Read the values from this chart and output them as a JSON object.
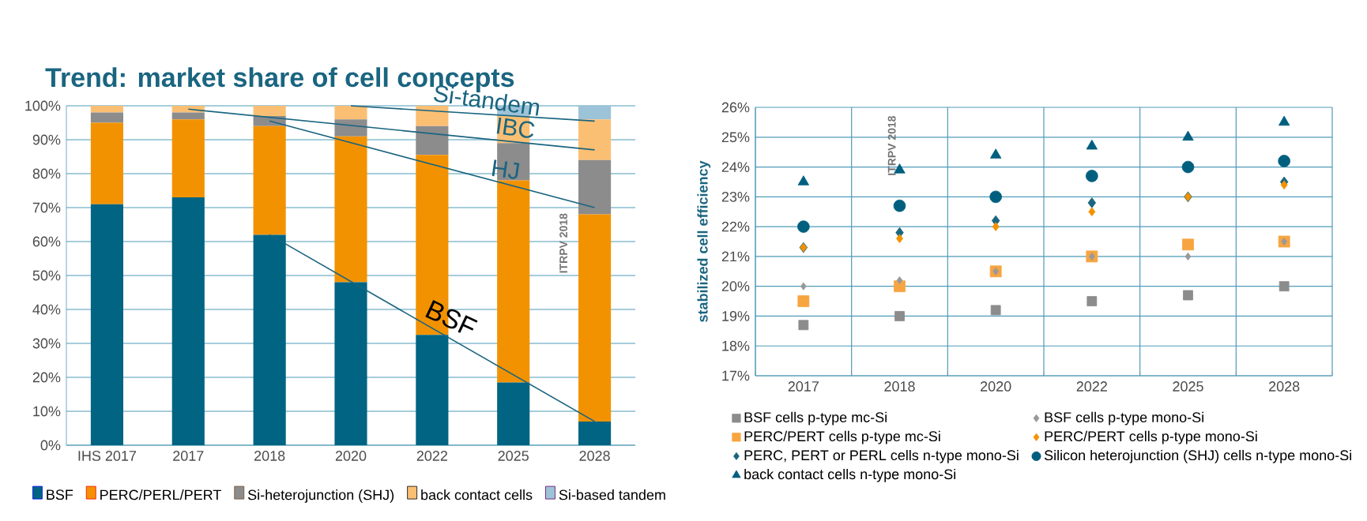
{
  "chart_data": [
    {
      "type": "bar",
      "title": "Trend: market share of cell concepts",
      "stacked": true,
      "grid": "y",
      "legend": "bottom",
      "categories": [
        "IHS 2017",
        "2017",
        "2018",
        "2020",
        "2022",
        "2025",
        "2028"
      ],
      "ylim": [
        0,
        100
      ],
      "yticks": [
        {
          "value": 0,
          "label": "0%"
        },
        {
          "value": 10,
          "label": "10%"
        },
        {
          "value": 20,
          "label": "20%"
        },
        {
          "value": 30,
          "label": "30%"
        },
        {
          "value": 40,
          "label": "40%"
        },
        {
          "value": 50,
          "label": "50%"
        },
        {
          "value": 60,
          "label": "60%"
        },
        {
          "value": 70,
          "label": "70%"
        },
        {
          "value": 80,
          "label": "80%"
        },
        {
          "value": 90,
          "label": "90%"
        },
        {
          "value": 100,
          "label": "100%"
        }
      ],
      "series": [
        {
          "name": "BSF",
          "color": "#006482",
          "values": [
            71,
            73,
            62,
            48,
            32.5,
            18.5,
            7
          ]
        },
        {
          "name": "PERC/PERL/PERT",
          "color": "#f39200",
          "values": [
            24,
            23,
            32,
            43,
            53,
            59.5,
            61
          ]
        },
        {
          "name": "Si-heterojunction (SHJ)",
          "color": "#8c8c8c",
          "values": [
            3,
            2,
            3,
            5,
            8.5,
            11,
            16
          ]
        },
        {
          "name": "back contact cells",
          "color": "#fbbf73",
          "values": [
            2,
            2,
            3,
            4,
            6,
            8,
            12
          ]
        },
        {
          "name": "Si-based tandem",
          "color": "#9dc3d9",
          "values": [
            0,
            0,
            0,
            0,
            0,
            3,
            4
          ]
        },
        {
          "type": "line",
          "color": "#1a6580",
          "values": [
            null,
            null,
            62,
            null,
            null,
            null,
            7
          ]
        },
        {
          "type": "line",
          "color": "#1a6580",
          "values": [
            null,
            null,
            95.5,
            null,
            null,
            null,
            70
          ]
        },
        {
          "type": "line",
          "color": "#1a6580",
          "values": [
            null,
            99,
            null,
            null,
            null,
            null,
            87
          ]
        },
        {
          "type": "line",
          "color": "#1a6580",
          "values": [
            null,
            null,
            null,
            100,
            null,
            null,
            95.5
          ]
        }
      ],
      "annotations": [
        "BSF",
        "HJ",
        "IBC",
        "Si-tandem",
        "ITRPV 2018"
      ]
    },
    {
      "type": "scatter",
      "ylabel": "stabilized cell efficiency",
      "grid": true,
      "legend": "bottom",
      "categories": [
        "2017",
        "2018",
        "2020",
        "2022",
        "2025",
        "2028"
      ],
      "ylim": [
        17,
        26
      ],
      "yticks": [
        {
          "value": 17,
          "label": "17%"
        },
        {
          "value": 18,
          "label": "18%"
        },
        {
          "value": 19,
          "label": "19%"
        },
        {
          "value": 20,
          "label": "20%"
        },
        {
          "value": 21,
          "label": "21%"
        },
        {
          "value": 22,
          "label": "22%"
        },
        {
          "value": 23,
          "label": "23%"
        },
        {
          "value": 24,
          "label": "24%"
        },
        {
          "value": 25,
          "label": "25%"
        },
        {
          "value": 26,
          "label": "26%"
        }
      ],
      "series": [
        {
          "name": "BSF cells p-type mc-Si",
          "color": "#8c8c8c",
          "marker": "square",
          "values": [
            18.7,
            19.0,
            19.2,
            19.5,
            19.7,
            20.0
          ]
        },
        {
          "name": "BSF cells p-type mono-Si",
          "color": "#999999",
          "marker": "diamond",
          "values": [
            20.0,
            20.2,
            20.5,
            21.0,
            21.0,
            21.5
          ]
        },
        {
          "name": "PERC/PERT cells p-type mc-Si",
          "color": "#f7a541",
          "marker": "square",
          "values": [
            19.5,
            20.0,
            20.5,
            21.0,
            21.4,
            21.5
          ]
        },
        {
          "name": "PERC/PERT cells p-type mono-Si",
          "color": "#f39200",
          "marker": "diamond",
          "values": [
            21.3,
            21.6,
            22.0,
            22.5,
            23.0,
            23.4
          ]
        },
        {
          "name": "PERC, PERT or PERL cells n-type mono-Si",
          "color": "#1a6580",
          "marker": "diamond",
          "values": [
            21.3,
            21.8,
            22.2,
            22.8,
            23.0,
            23.5
          ]
        },
        {
          "name": "Silicon heterojunction (SHJ) cells n-type mono-Si",
          "color": "#005f7f",
          "marker": "circle",
          "values": [
            22.0,
            22.7,
            23.0,
            23.7,
            24.0,
            24.2
          ]
        },
        {
          "name": "back contact cells n-type mono-Si",
          "color": "#005f7f",
          "marker": "triangle",
          "values": [
            23.5,
            23.9,
            24.4,
            24.7,
            25.0,
            25.5
          ]
        }
      ],
      "annotations": [
        "ITRPV 2018"
      ]
    }
  ]
}
